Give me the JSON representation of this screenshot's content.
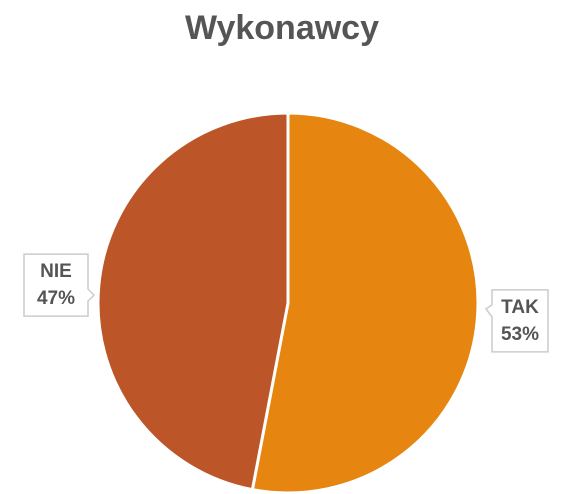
{
  "chart_data": {
    "type": "pie",
    "title": "Wykonawcy",
    "categories": [
      "TAK",
      "NIE"
    ],
    "values": [
      53,
      47
    ],
    "value_labels": [
      "53%",
      "47%"
    ],
    "colors": [
      "#e6850f",
      "#bc5628"
    ]
  }
}
